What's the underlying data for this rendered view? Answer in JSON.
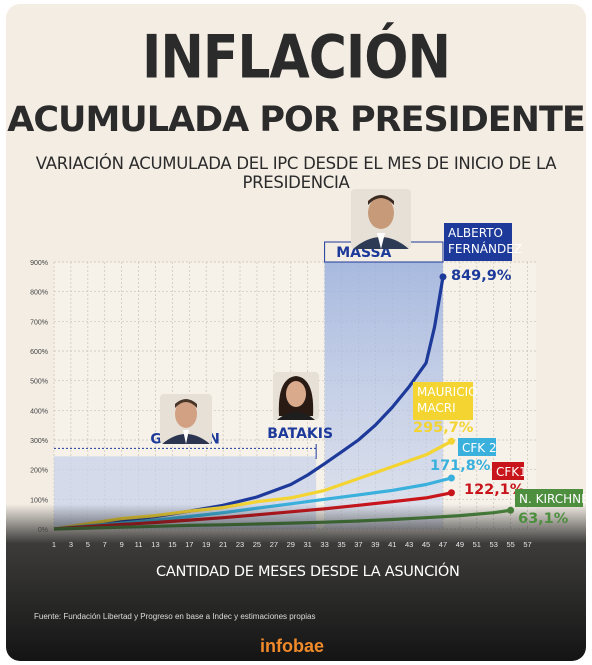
{
  "header": {
    "title": "INFLACIÓN",
    "subtitle": "ACUMULADA POR PRESIDENTE",
    "description": "VARIACIÓN ACUMULADA DEL IPC DESDE EL MES DE INICIO DE LA PRESIDENCIA"
  },
  "footer": {
    "source": "Fuente: Fundación Libertad y Progreso en base a Indec y estimaciones propias",
    "brand": "infobae"
  },
  "colors": {
    "background": "#f3ede4",
    "alberto": "#1d3a9a",
    "macri": "#f3d431",
    "cfk2": "#3ab0dc",
    "cfk1": "#c8151c",
    "kirchner": "#4d8e3f",
    "highlight": "#a6b8e0"
  },
  "chart_data": {
    "type": "line",
    "xlabel": "CANTIDAD DE MESES DESDE LA ASUNCIÓN",
    "ylabel": "",
    "xlim": [
      1,
      58
    ],
    "ylim": [
      0,
      900
    ],
    "x_ticks": [
      "1",
      "3",
      "5",
      "7",
      "9",
      "11",
      "13",
      "15",
      "17",
      "19",
      "21",
      "23",
      "25",
      "27",
      "29",
      "31",
      "33",
      "35",
      "37",
      "39",
      "41",
      "43",
      "45",
      "47",
      "49",
      "51",
      "53",
      "55",
      "57"
    ],
    "y_ticks": [
      "0%",
      "100%",
      "200%",
      "300%",
      "400%",
      "500%",
      "600%",
      "700%",
      "800%",
      "900%"
    ],
    "grid": true,
    "series": [
      {
        "name": "ALBERTO FERNÁNDEZ",
        "label_lines": [
          "ALBERTO",
          "FERNÁNDEZ"
        ],
        "final_label": "849,9%",
        "color": "#1d3a9a",
        "points": [
          [
            1,
            0
          ],
          [
            5,
            12
          ],
          [
            9,
            28
          ],
          [
            13,
            42
          ],
          [
            17,
            60
          ],
          [
            21,
            80
          ],
          [
            25,
            108
          ],
          [
            29,
            150
          ],
          [
            31,
            182
          ],
          [
            33,
            220
          ],
          [
            35,
            260
          ],
          [
            37,
            300
          ],
          [
            39,
            350
          ],
          [
            41,
            410
          ],
          [
            43,
            480
          ],
          [
            45,
            560
          ],
          [
            46,
            680
          ],
          [
            47,
            849.9
          ]
        ]
      },
      {
        "name": "MAURICIO MACRI",
        "label_lines": [
          "MAURICIO",
          "MACRI"
        ],
        "final_label": "295,7%",
        "color": "#f3d431",
        "points": [
          [
            1,
            0
          ],
          [
            5,
            18
          ],
          [
            9,
            35
          ],
          [
            13,
            45
          ],
          [
            17,
            60
          ],
          [
            21,
            72
          ],
          [
            25,
            92
          ],
          [
            29,
            105
          ],
          [
            33,
            130
          ],
          [
            37,
            170
          ],
          [
            41,
            210
          ],
          [
            45,
            250
          ],
          [
            48,
            295.7
          ]
        ]
      },
      {
        "name": "CFK 2",
        "label_lines": [
          "CFK 2"
        ],
        "final_label": "171,8%",
        "color": "#3ab0dc",
        "points": [
          [
            1,
            0
          ],
          [
            5,
            10
          ],
          [
            9,
            20
          ],
          [
            13,
            30
          ],
          [
            17,
            42
          ],
          [
            21,
            55
          ],
          [
            25,
            70
          ],
          [
            29,
            85
          ],
          [
            33,
            100
          ],
          [
            37,
            115
          ],
          [
            41,
            130
          ],
          [
            45,
            150
          ],
          [
            48,
            171.8
          ]
        ]
      },
      {
        "name": "CFK1",
        "label_lines": [
          "CFK1"
        ],
        "final_label": "122,1%",
        "color": "#c8151c",
        "points": [
          [
            1,
            0
          ],
          [
            5,
            8
          ],
          [
            9,
            15
          ],
          [
            13,
            22
          ],
          [
            17,
            30
          ],
          [
            21,
            38
          ],
          [
            25,
            48
          ],
          [
            29,
            58
          ],
          [
            33,
            68
          ],
          [
            37,
            80
          ],
          [
            41,
            92
          ],
          [
            45,
            105
          ],
          [
            48,
            122.1
          ]
        ]
      },
      {
        "name": "N. KIRCHNER",
        "label_lines": [
          "N. KIRCHNER"
        ],
        "final_label": "63,1%",
        "color": "#4d8e3f",
        "points": [
          [
            1,
            0
          ],
          [
            5,
            3
          ],
          [
            9,
            6
          ],
          [
            13,
            9
          ],
          [
            17,
            12
          ],
          [
            21,
            14
          ],
          [
            25,
            17
          ],
          [
            29,
            20
          ],
          [
            33,
            23
          ],
          [
            37,
            27
          ],
          [
            41,
            32
          ],
          [
            45,
            38
          ],
          [
            49,
            45
          ],
          [
            53,
            55
          ],
          [
            55,
            63.1
          ]
        ]
      }
    ],
    "annotations": [
      {
        "label": "GUZMÁN",
        "x_range": [
          1,
          32
        ],
        "y_top": 245
      },
      {
        "label": "BATAKIS",
        "x": 32
      },
      {
        "label": "MASSA",
        "x_range": [
          33,
          47
        ],
        "y_top": 900
      }
    ]
  }
}
